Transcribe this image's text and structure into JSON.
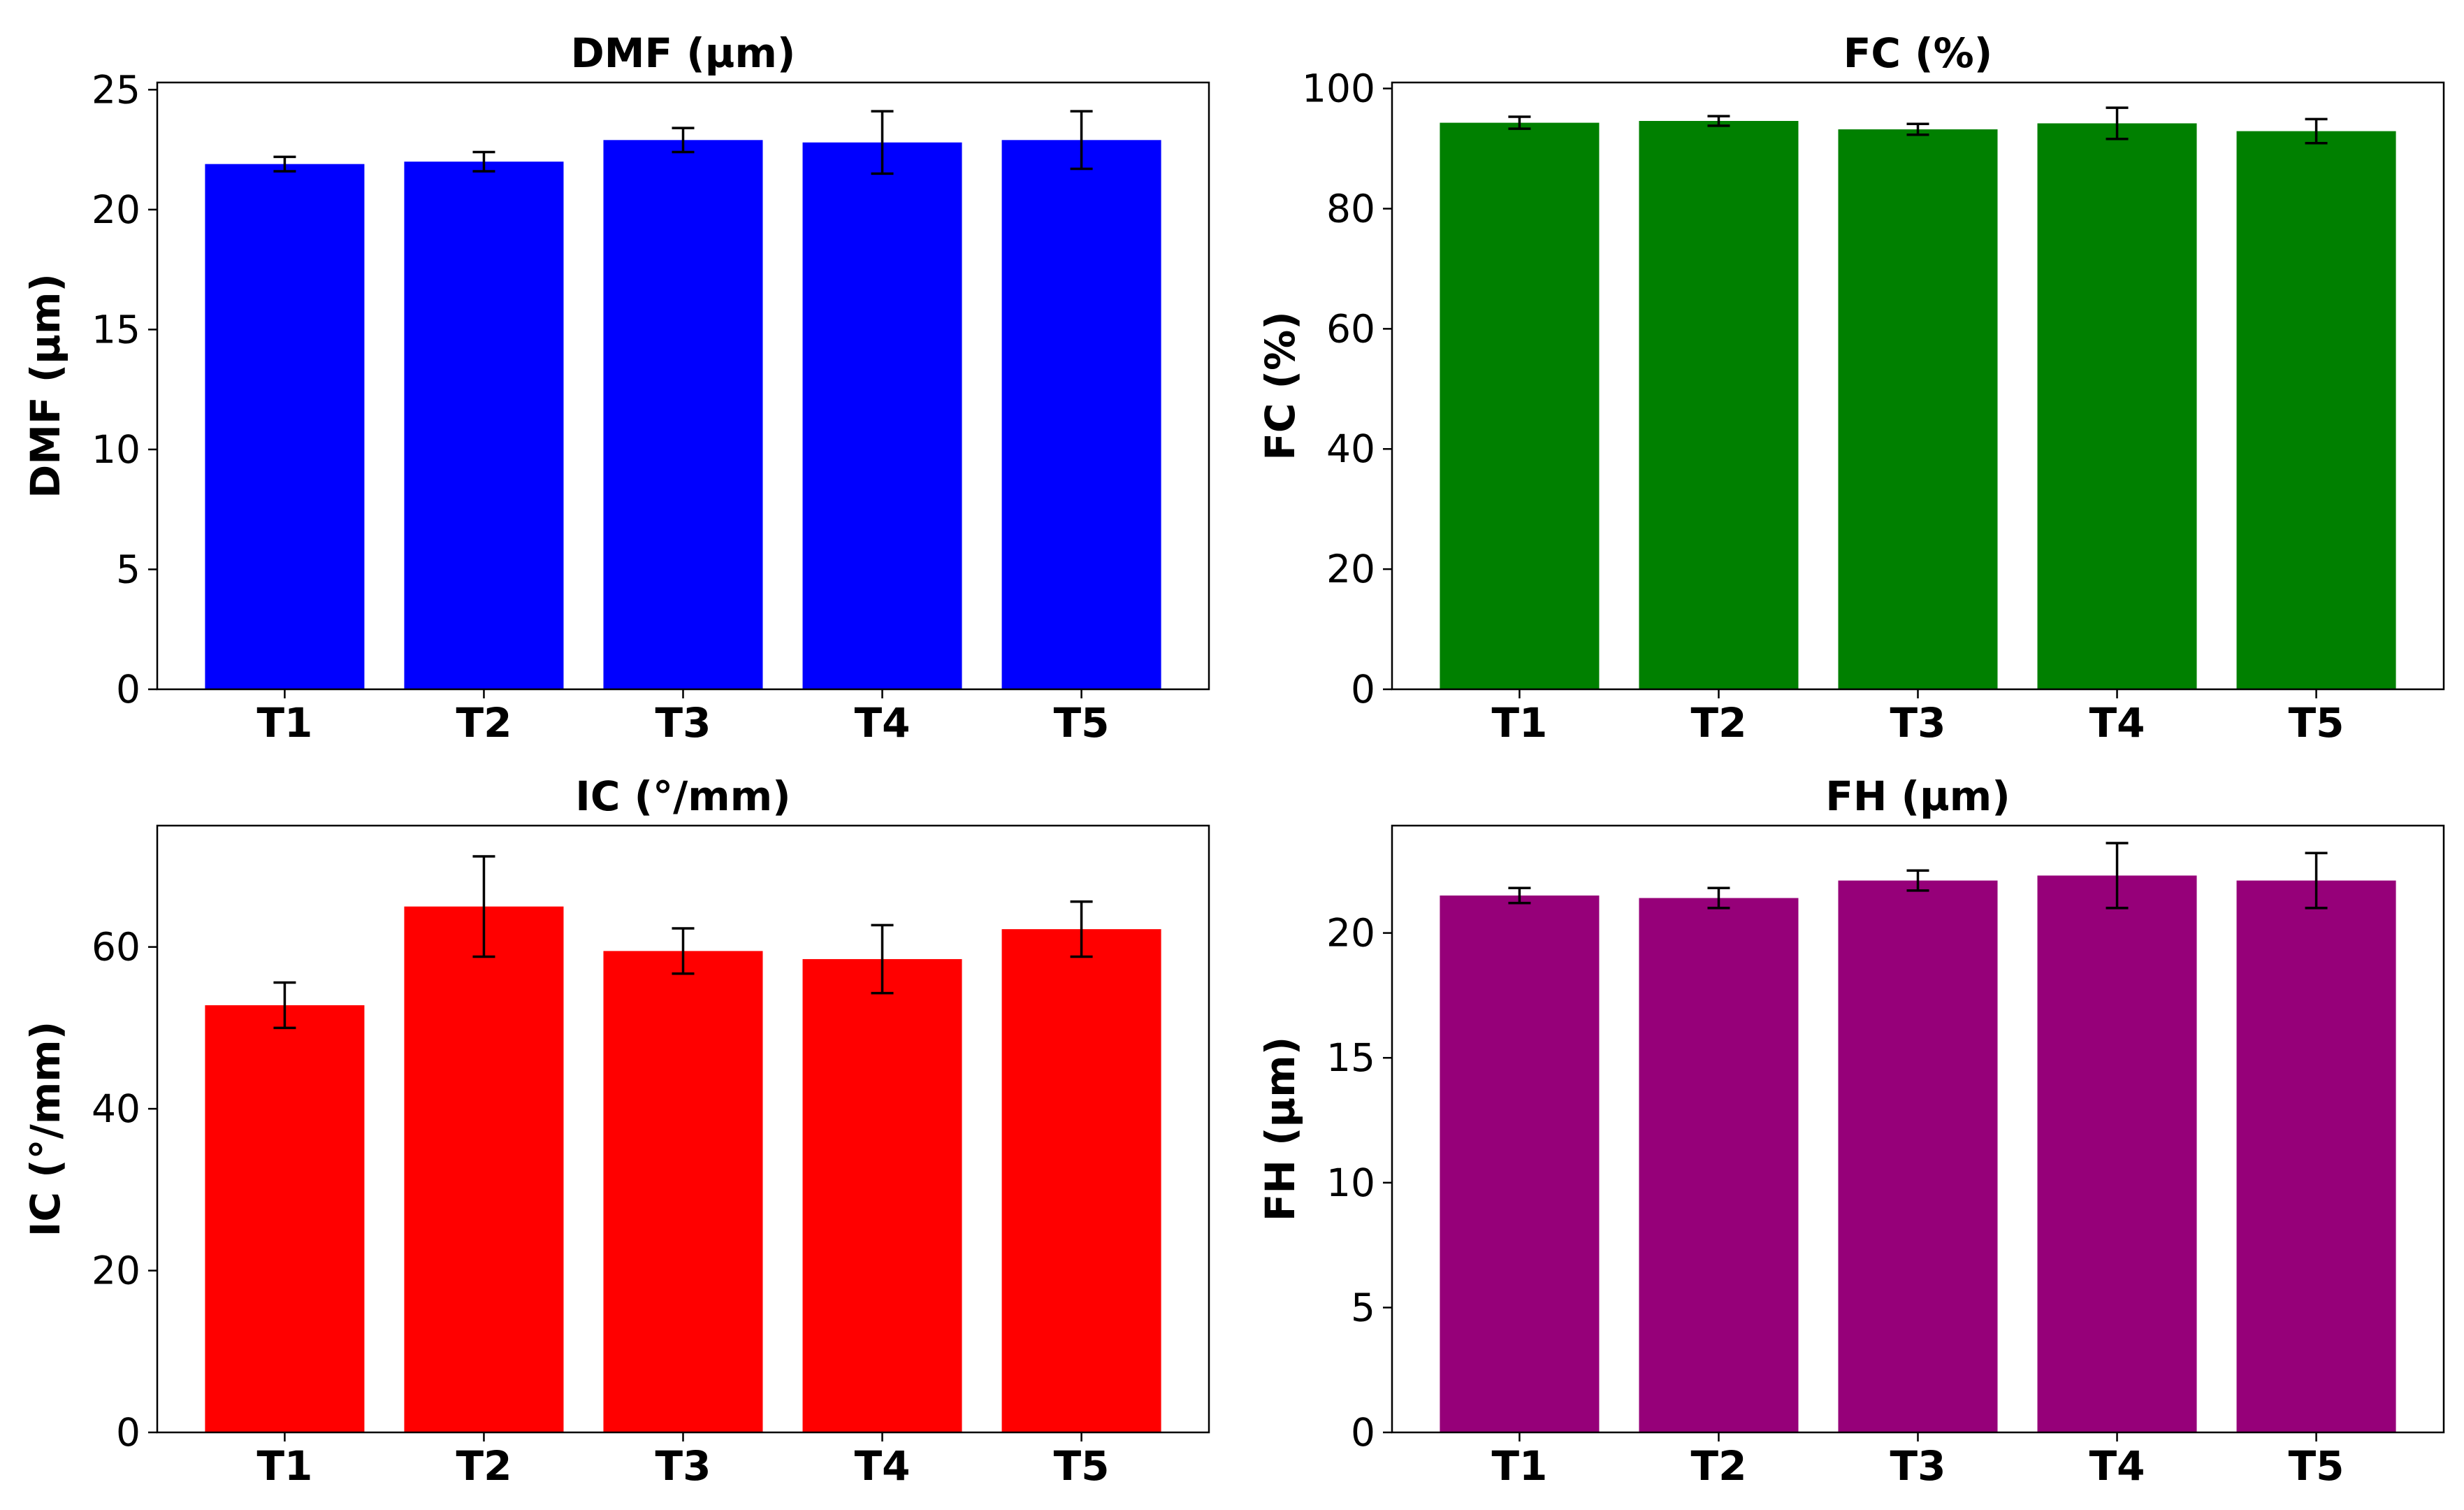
{
  "figure": {
    "layout": "2x2 grid of bar charts with error bars"
  },
  "chart_data": [
    {
      "type": "bar",
      "title": "DMF (µm)",
      "xlabel": "",
      "ylabel": "DMF (µm)",
      "categories": [
        "T1",
        "T2",
        "T3",
        "T4",
        "T5"
      ],
      "values": [
        21.9,
        22.0,
        22.9,
        22.8,
        22.9
      ],
      "errors": [
        0.3,
        0.4,
        0.5,
        1.3,
        1.2
      ],
      "ylim": [
        0,
        25.3
      ],
      "yticks": [
        "0",
        "5",
        "10",
        "15",
        "20",
        "25"
      ],
      "ytick_values": [
        0,
        5,
        10,
        15,
        20,
        25
      ],
      "color": "#0000ff",
      "grid": false
    },
    {
      "type": "bar",
      "title": "FC (%)",
      "xlabel": "",
      "ylabel": "FC (%)",
      "categories": [
        "T1",
        "T2",
        "T3",
        "T4",
        "T5"
      ],
      "values": [
        94.3,
        94.6,
        93.2,
        94.2,
        92.9
      ],
      "errors": [
        1.0,
        0.8,
        0.9,
        2.6,
        2.0
      ],
      "ylim": [
        0,
        101
      ],
      "yticks": [
        "0",
        "20",
        "40",
        "60",
        "80",
        "100"
      ],
      "ytick_values": [
        0,
        20,
        40,
        60,
        80,
        100
      ],
      "color": "#008000",
      "grid": false
    },
    {
      "type": "bar",
      "title": "IC (°/mm)",
      "xlabel": "",
      "ylabel": "IC (°/mm)",
      "categories": [
        "T1",
        "T2",
        "T3",
        "T4",
        "T5"
      ],
      "values": [
        52.8,
        65.0,
        59.5,
        58.5,
        62.2
      ],
      "errors": [
        2.8,
        6.2,
        2.8,
        4.2,
        3.4
      ],
      "ylim": [
        0,
        75
      ],
      "yticks": [
        "0",
        "20",
        "40",
        "60"
      ],
      "ytick_values": [
        0,
        20,
        40,
        60
      ],
      "color": "#ff0000",
      "grid": false
    },
    {
      "type": "bar",
      "title": "FH (µm)",
      "xlabel": "",
      "ylabel": "FH (µm)",
      "categories": [
        "T1",
        "T2",
        "T3",
        "T4",
        "T5"
      ],
      "values": [
        21.5,
        21.4,
        22.1,
        22.3,
        22.1
      ],
      "errors": [
        0.3,
        0.4,
        0.4,
        1.3,
        1.1
      ],
      "ylim": [
        0,
        24.3
      ],
      "yticks": [
        "0",
        "5",
        "10",
        "15",
        "20"
      ],
      "ytick_values": [
        0,
        5,
        10,
        15,
        20
      ],
      "color": "#960079",
      "grid": false
    }
  ]
}
